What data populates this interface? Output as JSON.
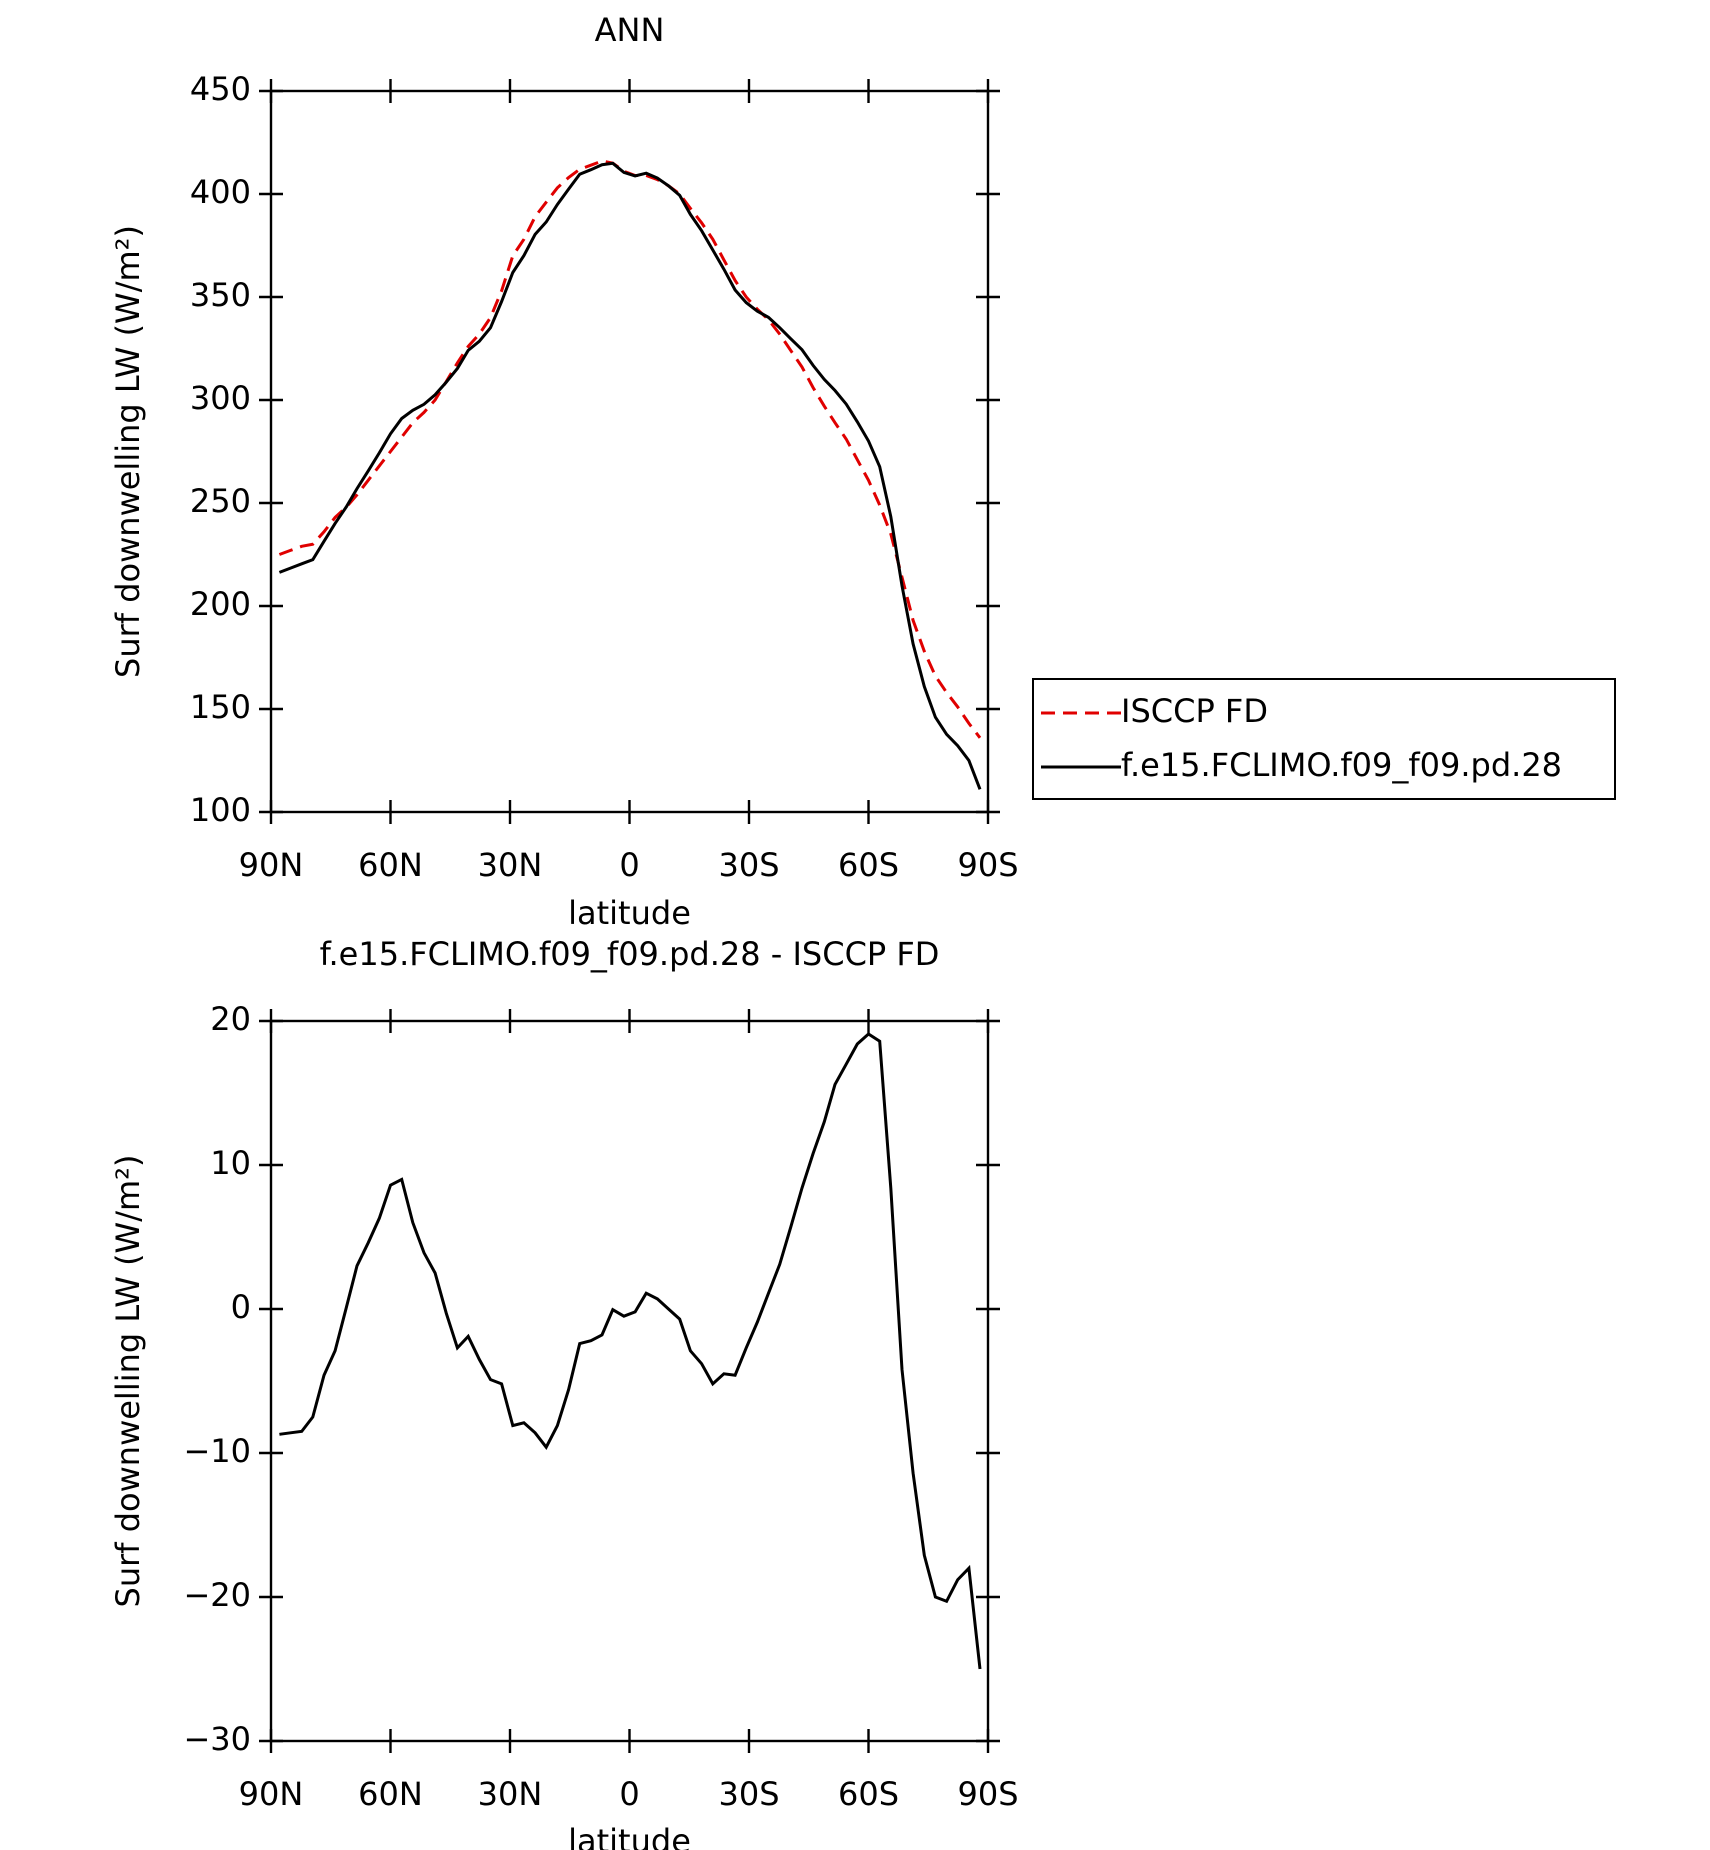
{
  "chart_data": [
    {
      "type": "line",
      "title": "ANN",
      "xlabel": "latitude",
      "ylabel": "Surf downwelling LW (W/m²)",
      "x": [
        87.9,
        85.1,
        82.3,
        79.5,
        76.7,
        73.9,
        71.1,
        68.4,
        65.6,
        62.8,
        60.0,
        57.2,
        54.4,
        51.6,
        48.8,
        46.0,
        43.2,
        40.5,
        37.7,
        34.9,
        32.1,
        29.3,
        26.5,
        23.7,
        20.9,
        18.1,
        15.3,
        12.5,
        9.7,
        6.9,
        4.2,
        1.4,
        -1.4,
        -4.2,
        -7.0,
        -9.8,
        -12.6,
        -15.3,
        -18.1,
        -20.9,
        -23.7,
        -26.5,
        -29.3,
        -32.1,
        -34.9,
        -37.7,
        -40.5,
        -43.3,
        -46.1,
        -48.9,
        -51.6,
        -54.4,
        -57.2,
        -60.0,
        -62.8,
        -65.6,
        -68.4,
        -71.2,
        -74.0,
        -76.8,
        -79.6,
        -82.4,
        -85.2,
        -88.0
      ],
      "series": [
        {
          "name": "ISCCP FD",
          "color": "#e00000",
          "linestyle": "dashed",
          "values": [
            225,
            227,
            229,
            230,
            236,
            243,
            248,
            254,
            261,
            268,
            275,
            282,
            289,
            294,
            300,
            309,
            318,
            326,
            332,
            340,
            353,
            370,
            378,
            389,
            396,
            403,
            408,
            412,
            414,
            416,
            415,
            411,
            409,
            409,
            407,
            404,
            400,
            393,
            386,
            378,
            368,
            358,
            350,
            344,
            339,
            332,
            324,
            316,
            306,
            297,
            289,
            281,
            271,
            261,
            249,
            235,
            214,
            193,
            178,
            166,
            158,
            151,
            143,
            136
          ]
        },
        {
          "name": "f.e15.FCLIMO.f09_f09.pd.28",
          "color": "#000000",
          "linestyle": "solid",
          "values": [
            216.3,
            218.4,
            220.5,
            222.5,
            231.4,
            240.1,
            248.1,
            257,
            265.6,
            274.3,
            283.6,
            291,
            295,
            297.9,
            302.5,
            308.7,
            315.3,
            324.1,
            328.5,
            335.1,
            347.8,
            361.9,
            370.1,
            380.4,
            386.4,
            394.9,
            402.4,
            409.6,
            411.8,
            414.2,
            414.9,
            410.5,
            408.8,
            410.1,
            407.7,
            404,
            399.3,
            390.1,
            382.2,
            372.8,
            363.5,
            353.4,
            347.3,
            343.1,
            340.1,
            335.1,
            329.7,
            324.4,
            316.8,
            310,
            304.6,
            298,
            289.4,
            280.1,
            267.6,
            243.4,
            209.8,
            181.6,
            160.9,
            146,
            137.7,
            132.2,
            125,
            111
          ]
        }
      ],
      "xlim": [
        90,
        -90
      ],
      "xticks": [
        {
          "value": 90,
          "label": "90N"
        },
        {
          "value": 60,
          "label": "60N"
        },
        {
          "value": 30,
          "label": "30N"
        },
        0,
        {
          "value": -30,
          "label": "30S"
        },
        {
          "value": -60,
          "label": "60S"
        },
        {
          "value": -90,
          "label": "90S"
        }
      ],
      "ylim": [
        100,
        450
      ],
      "yticks": [
        100,
        150,
        200,
        250,
        300,
        350,
        400,
        450
      ],
      "legend": "right"
    },
    {
      "type": "line",
      "title": "f.e15.FCLIMO.f09_f09.pd.28 - ISCCP FD",
      "xlabel": "latitude",
      "ylabel": "Surf downwelling LW (W/m²)",
      "x": [
        87.9,
        85.1,
        82.3,
        79.5,
        76.7,
        73.9,
        71.1,
        68.4,
        65.6,
        62.8,
        60.0,
        57.2,
        54.4,
        51.6,
        48.8,
        46.0,
        43.2,
        40.5,
        37.7,
        34.9,
        32.1,
        29.3,
        26.5,
        23.7,
        20.9,
        18.1,
        15.3,
        12.5,
        9.7,
        6.9,
        4.2,
        1.4,
        -1.4,
        -4.2,
        -7.0,
        -9.8,
        -12.6,
        -15.3,
        -18.1,
        -20.9,
        -23.7,
        -26.5,
        -29.3,
        -32.1,
        -34.9,
        -37.7,
        -40.5,
        -43.3,
        -46.1,
        -48.9,
        -51.6,
        -54.4,
        -57.2,
        -60.0,
        -62.8,
        -65.6,
        -68.4,
        -71.2,
        -74.0,
        -76.8,
        -79.6,
        -82.4,
        -85.2,
        -88.0
      ],
      "series": [
        {
          "color": "#000000",
          "linestyle": "solid",
          "values": [
            -8.7,
            -8.6,
            -8.5,
            -7.5,
            -4.6,
            -2.9,
            0.1,
            3.0,
            4.6,
            6.3,
            8.6,
            9.0,
            6.0,
            3.9,
            2.5,
            -0.3,
            -2.7,
            -1.9,
            -3.5,
            -4.9,
            -5.2,
            -8.1,
            -7.9,
            -8.6,
            -9.6,
            -8.1,
            -5.6,
            -2.4,
            -2.2,
            -1.8,
            -0.05,
            -0.5,
            -0.2,
            1.1,
            0.7,
            0.0,
            -0.7,
            -2.9,
            -3.8,
            -5.2,
            -4.5,
            -4.6,
            -2.7,
            -0.9,
            1.1,
            3.1,
            5.7,
            8.4,
            10.8,
            13.0,
            15.6,
            17.0,
            18.4,
            19.1,
            18.6,
            8.4,
            -4.2,
            -11.4,
            -17.1,
            -20.0,
            -20.3,
            -18.8,
            -18.0,
            -25.0
          ]
        }
      ],
      "xlim": [
        90,
        -90
      ],
      "xticks": [
        {
          "value": 90,
          "label": "90N"
        },
        {
          "value": 60,
          "label": "60N"
        },
        {
          "value": 30,
          "label": "30N"
        },
        0,
        {
          "value": -30,
          "label": "30S"
        },
        {
          "value": -60,
          "label": "60S"
        },
        {
          "value": -90,
          "label": "90S"
        }
      ],
      "ylim": [
        -30,
        20
      ],
      "yticks": [
        {
          "value": -30,
          "label": "−30"
        },
        {
          "value": -20,
          "label": "−20"
        },
        {
          "value": -10,
          "label": "−10"
        },
        0,
        10,
        20
      ]
    }
  ]
}
